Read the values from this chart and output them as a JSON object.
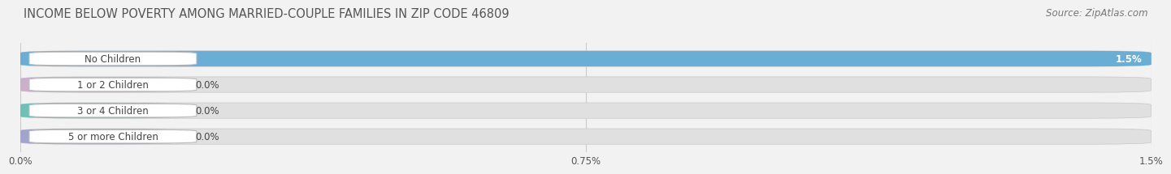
{
  "title": "INCOME BELOW POVERTY AMONG MARRIED-COUPLE FAMILIES IN ZIP CODE 46809",
  "source": "Source: ZipAtlas.com",
  "categories": [
    "No Children",
    "1 or 2 Children",
    "3 or 4 Children",
    "5 or more Children"
  ],
  "values": [
    1.5,
    0.0,
    0.0,
    0.0
  ],
  "value_labels": [
    "1.5%",
    "0.0%",
    "0.0%",
    "0.0%"
  ],
  "bar_colors": [
    "#6aaed6",
    "#c9a8c8",
    "#5bbcb0",
    "#9999cc"
  ],
  "xlim": [
    0,
    1.5
  ],
  "xticks": [
    0.0,
    0.75,
    1.5
  ],
  "xtick_labels": [
    "0.0%",
    "0.75%",
    "1.5%"
  ],
  "title_fontsize": 10.5,
  "source_fontsize": 8.5,
  "bar_label_fontsize": 8.5,
  "value_fontsize": 8.5,
  "axis_fontsize": 8.5,
  "background_color": "#f2f2f2",
  "bar_bg_color": "#e0e0e0",
  "grid_color": "#cccccc",
  "label_pill_color": "white",
  "bar_height": 0.6,
  "rounding": 0.08
}
